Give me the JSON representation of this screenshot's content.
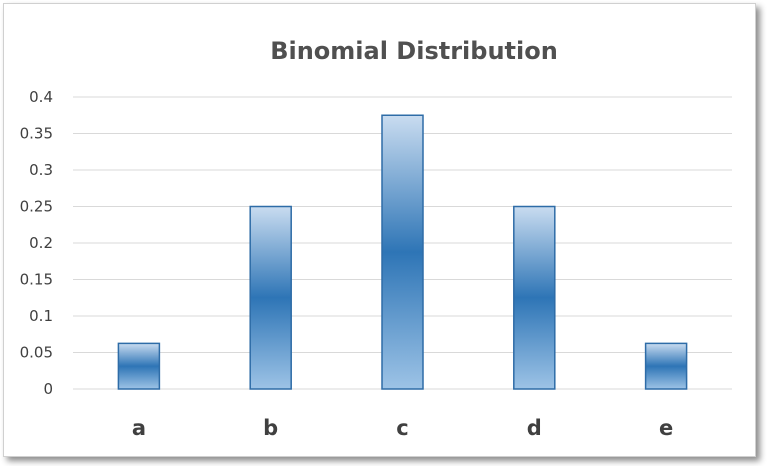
{
  "chart_data": {
    "type": "bar",
    "title": "Binomial Distribution",
    "xlabel": "",
    "ylabel": "",
    "categories": [
      "a",
      "b",
      "c",
      "d",
      "e"
    ],
    "values": [
      0.0625,
      0.25,
      0.375,
      0.25,
      0.0625
    ],
    "ylim": [
      0,
      0.4
    ],
    "yticks": [
      "0",
      "0.05",
      "0.1",
      "0.15",
      "0.2",
      "0.25",
      "0.3",
      "0.35",
      "0.4"
    ],
    "grid": true,
    "legend": "none",
    "colors": {
      "bar_top": "#c9dcf0",
      "bar_mid": "#2e75b6",
      "bar_bottom": "#9dc3e6",
      "bar_border": "#2e6ca7",
      "grid": "#d9d9d9"
    }
  }
}
